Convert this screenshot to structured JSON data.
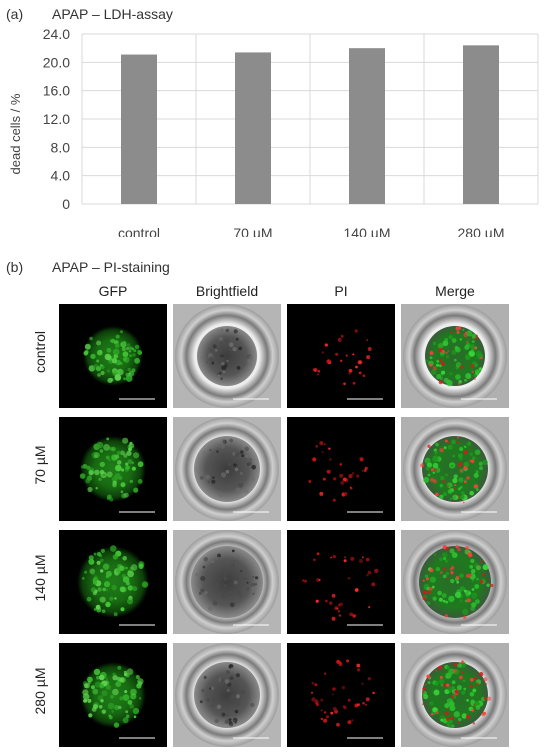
{
  "panel_a": {
    "label": "(a)",
    "title": "APAP – LDH-assay"
  },
  "chart_data": {
    "type": "bar",
    "title": "APAP – LDH-assay",
    "categories": [
      "control",
      "70 µM",
      "140 µM",
      "280 µM"
    ],
    "values": [
      21.1,
      21.4,
      22.0,
      22.4
    ],
    "ylabel": "dead cells / %",
    "xlabel": "",
    "ylim": [
      0,
      24
    ],
    "yticks": [
      0,
      4,
      8,
      12,
      16,
      20,
      24
    ],
    "ytick_labels": [
      "0",
      "4.0",
      "8.0",
      "12.0",
      "16.0",
      "20.0",
      "24.0"
    ],
    "grid": true,
    "bar_color": "#8c8c8c"
  },
  "panel_b": {
    "label": "(b)",
    "title": "APAP – PI-staining",
    "columns": [
      "GFP",
      "Brightfield",
      "PI",
      "Merge"
    ],
    "rows": [
      "control",
      "70 µM",
      "140 µM",
      "280 µM"
    ]
  }
}
